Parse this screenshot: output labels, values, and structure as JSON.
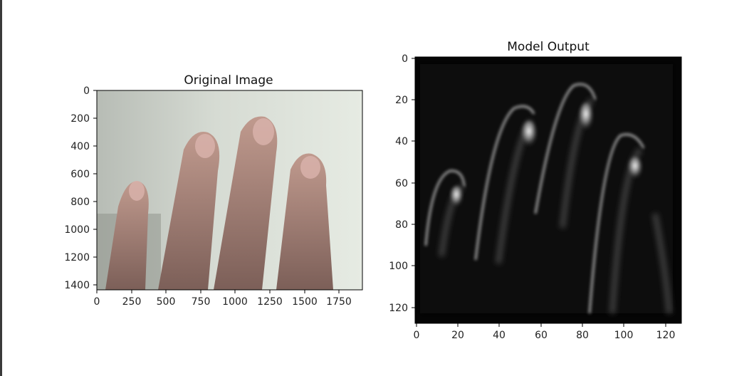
{
  "figure": {
    "left_panel": {
      "title": "Original Image",
      "x_ticks": [
        "0",
        "250",
        "500",
        "750",
        "1000",
        "1250",
        "1500",
        "1750"
      ],
      "y_ticks": [
        "0",
        "200",
        "400",
        "600",
        "800",
        "1000",
        "1200",
        "1400"
      ],
      "x_range": [
        0,
        1920
      ],
      "y_range": [
        0,
        1440
      ]
    },
    "right_panel": {
      "title": "Model Output",
      "x_ticks": [
        "0",
        "20",
        "40",
        "60",
        "80",
        "100",
        "120"
      ],
      "y_ticks": [
        "0",
        "20",
        "40",
        "60",
        "80",
        "100",
        "120"
      ],
      "x_range": [
        0,
        128
      ],
      "y_range": [
        0,
        128
      ],
      "colormap": "gray"
    }
  },
  "colors": {
    "frame": "#3a3a3a",
    "background": "#ffffff",
    "axis": "#000000"
  }
}
